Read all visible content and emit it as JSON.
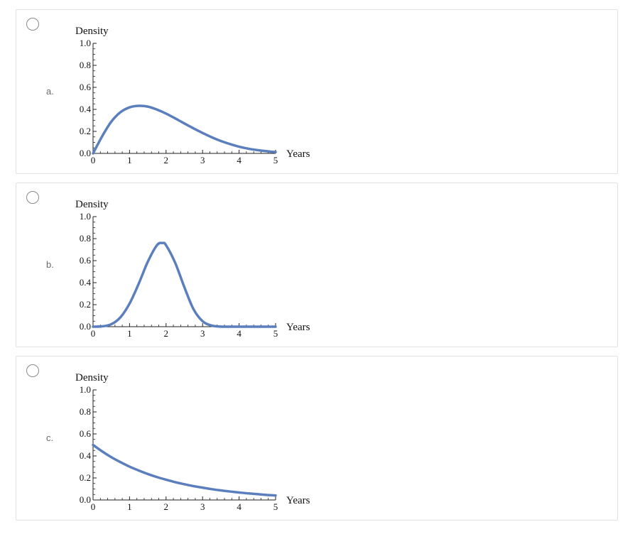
{
  "options": [
    {
      "letter": "a.",
      "selected": false
    },
    {
      "letter": "b.",
      "selected": false
    },
    {
      "letter": "c.",
      "selected": false
    }
  ],
  "chart_data": [
    {
      "type": "line",
      "ylabel": "Density",
      "xlabel": "Years",
      "xlim": [
        0,
        5
      ],
      "ylim": [
        0,
        1.0
      ],
      "xticks": [
        "0",
        "1",
        "2",
        "3",
        "4",
        "5"
      ],
      "yticks": [
        "0.0",
        "0.2",
        "0.4",
        "0.6",
        "0.8",
        "1.0"
      ],
      "series": [
        {
          "color": "#5b7fbd",
          "x": [
            0,
            0.25,
            0.5,
            0.75,
            1.0,
            1.25,
            1.5,
            1.75,
            2.0,
            2.25,
            2.5,
            2.75,
            3.0,
            3.25,
            3.5,
            3.75,
            4.0,
            4.25,
            4.5,
            4.75,
            5.0
          ],
          "y": [
            0.0,
            0.156,
            0.288,
            0.374,
            0.418,
            0.432,
            0.425,
            0.398,
            0.362,
            0.318,
            0.272,
            0.228,
            0.186,
            0.147,
            0.113,
            0.085,
            0.061,
            0.043,
            0.03,
            0.02,
            0.012
          ]
        }
      ]
    },
    {
      "type": "line",
      "ylabel": "Density",
      "xlabel": "Years",
      "xlim": [
        0,
        5
      ],
      "ylim": [
        0,
        1.0
      ],
      "xticks": [
        "0",
        "1",
        "2",
        "3",
        "4",
        "5"
      ],
      "yticks": [
        "0.0",
        "0.2",
        "0.4",
        "0.6",
        "0.8",
        "1.0"
      ],
      "series": [
        {
          "color": "#5b7fbd",
          "x": [
            0,
            0.25,
            0.5,
            0.75,
            1.0,
            1.25,
            1.5,
            1.75,
            1.9,
            2.0,
            2.25,
            2.5,
            2.75,
            3.0,
            3.25,
            3.5,
            3.75,
            4.0,
            4.25,
            4.5,
            4.75,
            5.0
          ],
          "y": [
            0.0,
            0.003,
            0.022,
            0.085,
            0.21,
            0.39,
            0.59,
            0.74,
            0.76,
            0.74,
            0.58,
            0.36,
            0.16,
            0.05,
            0.01,
            0.001,
            0.0,
            0.0,
            0.0,
            0.0,
            0.0,
            0.0
          ]
        }
      ]
    },
    {
      "type": "line",
      "ylabel": "Density",
      "xlabel": "Years",
      "xlim": [
        0,
        5
      ],
      "ylim": [
        0,
        1.0
      ],
      "xticks": [
        "0",
        "1",
        "2",
        "3",
        "4",
        "5"
      ],
      "yticks": [
        "0.0",
        "0.2",
        "0.4",
        "0.6",
        "0.8",
        "1.0"
      ],
      "series": [
        {
          "color": "#5b7fbd",
          "x": [
            0,
            0.25,
            0.5,
            0.75,
            1.0,
            1.25,
            1.5,
            1.75,
            2.0,
            2.25,
            2.5,
            2.75,
            3.0,
            3.25,
            3.5,
            3.75,
            4.0,
            4.25,
            4.5,
            4.75,
            5.0
          ],
          "y": [
            0.5,
            0.441,
            0.389,
            0.344,
            0.303,
            0.268,
            0.236,
            0.208,
            0.184,
            0.162,
            0.143,
            0.126,
            0.112,
            0.098,
            0.087,
            0.077,
            0.068,
            0.06,
            0.053,
            0.046,
            0.041
          ]
        }
      ]
    }
  ]
}
